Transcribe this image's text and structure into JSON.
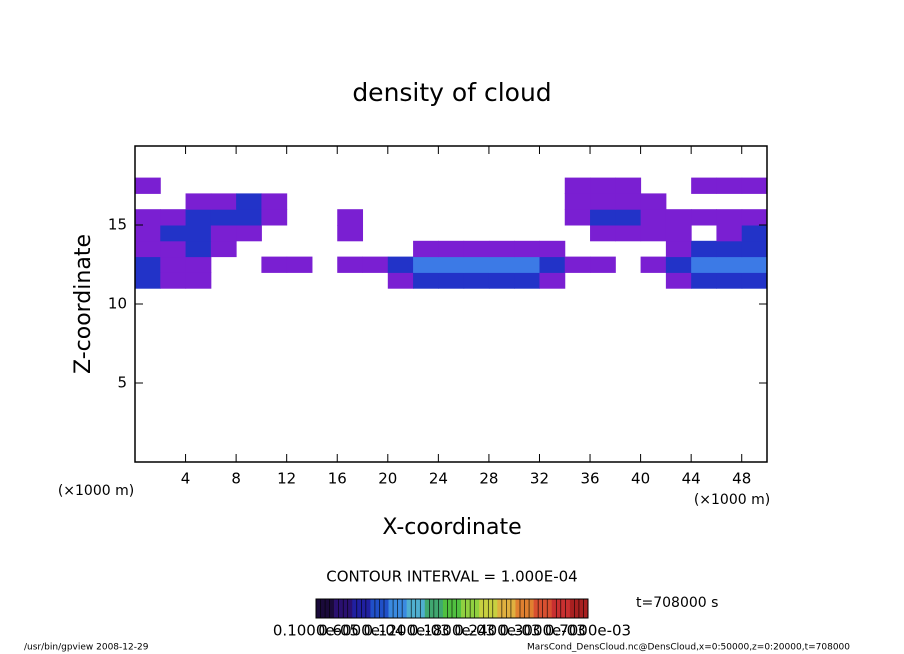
{
  "chart_data": {
    "type": "contour",
    "title": "density of cloud",
    "xlabel": "X-coordinate",
    "ylabel": "Z-coordinate",
    "x_unit_label": "(×1000 m)",
    "y_unit_label": "(×1000 m)",
    "xlim": [
      0,
      50
    ],
    "ylim": [
      0,
      20
    ],
    "xticks": [
      4,
      8,
      12,
      16,
      20,
      24,
      28,
      32,
      36,
      40,
      44,
      48
    ],
    "yticks": [
      5,
      10,
      15
    ],
    "xbins": [
      0,
      2,
      4,
      6,
      8,
      10,
      12,
      14,
      16,
      18,
      20,
      22,
      24,
      26,
      28,
      30,
      32,
      34,
      36,
      38,
      40,
      42,
      44,
      46,
      48,
      50
    ],
    "zbins": [
      11,
      12,
      13,
      14,
      15,
      16,
      17,
      18
    ],
    "values": [
      [
        0.00015,
        5e-05,
        5e-05,
        null,
        null,
        null,
        null,
        null,
        null,
        null,
        5e-05,
        0.00015,
        0.00015,
        0.00015,
        0.00015,
        0.00015,
        5e-05,
        null,
        null,
        null,
        null,
        5e-05,
        0.00015,
        0.00015,
        0.00015
      ],
      [
        0.00015,
        5e-05,
        5e-05,
        null,
        null,
        5e-05,
        5e-05,
        null,
        5e-05,
        5e-05,
        0.00015,
        0.0003,
        0.0003,
        0.0003,
        0.0003,
        0.0003,
        0.00015,
        5e-05,
        5e-05,
        null,
        5e-05,
        0.00015,
        0.0003,
        0.0003,
        0.0003
      ],
      [
        5e-05,
        5e-05,
        0.00015,
        5e-05,
        null,
        null,
        null,
        null,
        null,
        null,
        null,
        5e-05,
        5e-05,
        5e-05,
        5e-05,
        5e-05,
        5e-05,
        null,
        null,
        null,
        null,
        5e-05,
        0.00015,
        0.00015,
        0.00015
      ],
      [
        5e-05,
        0.00015,
        0.00015,
        5e-05,
        5e-05,
        null,
        null,
        null,
        5e-05,
        null,
        null,
        null,
        null,
        null,
        null,
        null,
        null,
        null,
        5e-05,
        5e-05,
        5e-05,
        5e-05,
        null,
        5e-05,
        0.00015
      ],
      [
        5e-05,
        5e-05,
        0.00015,
        0.00015,
        0.00015,
        5e-05,
        null,
        null,
        5e-05,
        null,
        null,
        null,
        null,
        null,
        null,
        null,
        null,
        5e-05,
        0.00015,
        0.00015,
        5e-05,
        5e-05,
        5e-05,
        5e-05,
        5e-05
      ],
      [
        null,
        null,
        5e-05,
        5e-05,
        0.00015,
        5e-05,
        null,
        null,
        null,
        null,
        null,
        null,
        null,
        null,
        null,
        null,
        null,
        5e-05,
        5e-05,
        5e-05,
        5e-05,
        null,
        null,
        null,
        null
      ],
      [
        5e-05,
        null,
        null,
        null,
        null,
        null,
        null,
        null,
        null,
        null,
        null,
        null,
        null,
        null,
        null,
        null,
        null,
        5e-05,
        5e-05,
        5e-05,
        null,
        null,
        5e-05,
        5e-05,
        5e-05
      ]
    ],
    "levels": [
      1e-05,
      0.0001,
      0.00025
    ],
    "level_colors": [
      "#7a1fd2",
      "#2233c8",
      "#3c7ae6"
    ],
    "colorbar_colors": [
      "#1a0a3a",
      "#2a1070",
      "#2020a0",
      "#2050c8",
      "#3a8ae0",
      "#50b0d0",
      "#40a870",
      "#50c040",
      "#90d040",
      "#c8d040",
      "#e0b040",
      "#e08030",
      "#d85030",
      "#c83030",
      "#a82020"
    ],
    "colorbar_labels": [
      "0.1000e-05",
      "0.6000e-04",
      "0.1200e-03",
      "0.1800e-03",
      "0.2400e-03",
      "0.3000e-03",
      "0.7000e-03"
    ],
    "contour_interval": "CONTOUR INTERVAL = 1.000E-04",
    "time_label": "t=708000 s",
    "footer_left": "/usr/bin/gpview  2008-12-29",
    "footer_right": "MarsCond_DensCloud.nc@DensCloud,x=0:50000,z=0:20000,t=708000"
  }
}
